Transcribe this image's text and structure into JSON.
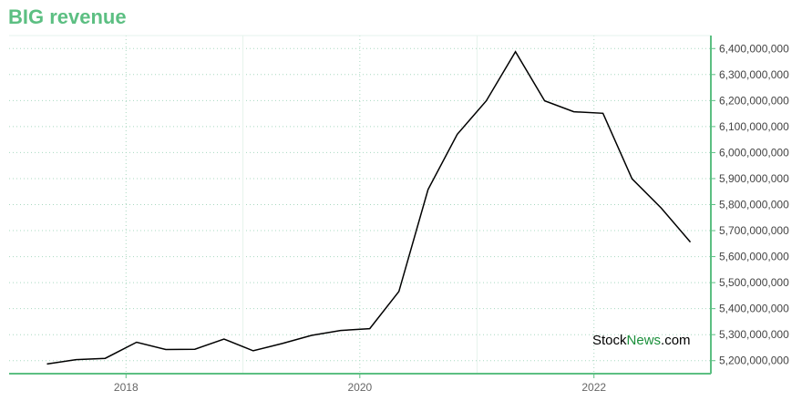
{
  "title": "BIG revenue",
  "watermark": {
    "part1": "Stock",
    "part2": "News",
    "part3": ".com"
  },
  "colors": {
    "title": "#5cbf82",
    "axis": "#5cbf82",
    "grid": "#a8d8c0",
    "line": "#000000"
  },
  "chart_data": {
    "type": "line",
    "title": "BIG revenue",
    "xlabel": "",
    "ylabel": "",
    "grid": true,
    "x_ticks": [
      "2018",
      "2020",
      "2022"
    ],
    "x_range": [
      "2017-01-01",
      "2023-01-01"
    ],
    "ylim": [
      5150000000,
      6450000000
    ],
    "y_ticks": [
      5200000000,
      5300000000,
      5400000000,
      5500000000,
      5600000000,
      5700000000,
      5800000000,
      5900000000,
      6000000000,
      6100000000,
      6200000000,
      6300000000,
      6400000000
    ],
    "y_tick_labels": [
      "5,200,000,000",
      "5,300,000,000",
      "5,400,000,000",
      "5,500,000,000",
      "5,600,000,000",
      "5,700,000,000",
      "5,800,000,000",
      "5,900,000,000",
      "6,000,000,000",
      "6,100,000,000",
      "6,200,000,000",
      "6,300,000,000",
      "6,400,000,000"
    ],
    "series": [
      {
        "points": [
          [
            "2017-04-29",
            5187000000
          ],
          [
            "2017-07-29",
            5204000000
          ],
          [
            "2017-10-28",
            5209000000
          ],
          [
            "2018-02-03",
            5271000000
          ],
          [
            "2018-05-05",
            5243000000
          ],
          [
            "2018-08-04",
            5244000000
          ],
          [
            "2018-11-03",
            5283000000
          ],
          [
            "2019-02-02",
            5238000000
          ],
          [
            "2019-05-04",
            5266000000
          ],
          [
            "2019-08-03",
            5297000000
          ],
          [
            "2019-11-02",
            5316000000
          ],
          [
            "2020-02-01",
            5323000000
          ],
          [
            "2020-05-02",
            5466000000
          ],
          [
            "2020-08-01",
            5858000000
          ],
          [
            "2020-10-31",
            6070000000
          ],
          [
            "2021-01-30",
            6199000000
          ],
          [
            "2021-05-01",
            6388000000
          ],
          [
            "2021-07-31",
            6199000000
          ],
          [
            "2021-10-30",
            6157000000
          ],
          [
            "2022-01-29",
            6151000000
          ],
          [
            "2022-04-30",
            5899000000
          ],
          [
            "2022-07-30",
            5787000000
          ],
          [
            "2022-10-29",
            5656000000
          ]
        ]
      }
    ]
  }
}
